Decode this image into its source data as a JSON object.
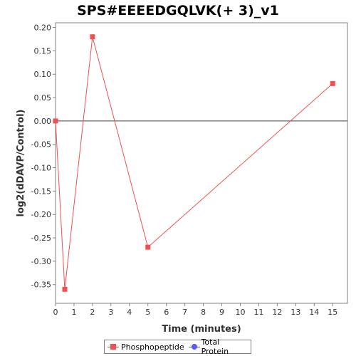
{
  "chart_data": {
    "type": "line",
    "title": "SPS#EEEEDGQLVK(+ 3)_v1",
    "xlabel": "Time (minutes)",
    "ylabel": "log2(dDAVP/Control)",
    "xlim": [
      0,
      15.8
    ],
    "ylim": [
      -0.39,
      0.21
    ],
    "x_ticks": [
      0,
      1,
      2,
      3,
      4,
      5,
      6,
      7,
      8,
      9,
      10,
      11,
      12,
      13,
      14,
      15
    ],
    "y_ticks": [
      "0.20",
      "0.15",
      "0.10",
      "0.05",
      "0.00",
      "-0.05",
      "-0.10",
      "-0.15",
      "-0.20",
      "-0.25",
      "-0.30",
      "-0.35"
    ],
    "zero_line": true,
    "grid": false,
    "legend_position": "bottom",
    "series": [
      {
        "name": "Phosphopeptide",
        "color": "#f05050",
        "marker": "square",
        "x": [
          0,
          0.5,
          2,
          5,
          15
        ],
        "y": [
          0.0,
          -0.36,
          0.18,
          -0.27,
          0.08
        ]
      },
      {
        "name": "Total Protein",
        "color": "#5a5af0",
        "marker": "circle",
        "x": [],
        "y": []
      }
    ]
  }
}
